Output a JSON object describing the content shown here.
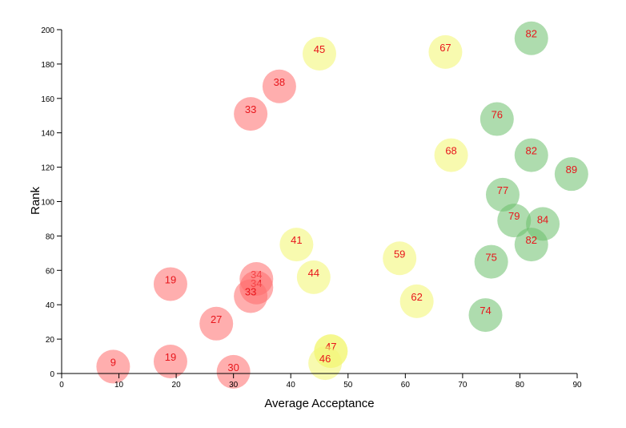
{
  "chart_data": {
    "type": "scatter",
    "title": "",
    "xlabel": "Average Acceptance",
    "ylabel": "Rank",
    "xlim": [
      0,
      90
    ],
    "ylim": [
      0,
      200
    ],
    "x_ticks": [
      0,
      10,
      20,
      30,
      40,
      50,
      60,
      70,
      80,
      90
    ],
    "y_ticks": [
      0,
      20,
      40,
      60,
      80,
      100,
      120,
      140,
      160,
      180,
      200
    ],
    "grid": false,
    "colors": {
      "red": "#ff6b6b",
      "yellow": "#f4f77a",
      "green": "#6cbf6c",
      "label": "#e8151b"
    },
    "points": [
      {
        "x": 82,
        "y": 195,
        "label": "82",
        "color": "green"
      },
      {
        "x": 45,
        "y": 186,
        "label": "45",
        "color": "yellow"
      },
      {
        "x": 67,
        "y": 187,
        "label": "67",
        "color": "yellow"
      },
      {
        "x": 38,
        "y": 167,
        "label": "38",
        "color": "red"
      },
      {
        "x": 33,
        "y": 151,
        "label": "33",
        "color": "red"
      },
      {
        "x": 76,
        "y": 148,
        "label": "76",
        "color": "green"
      },
      {
        "x": 68,
        "y": 127,
        "label": "68",
        "color": "yellow"
      },
      {
        "x": 82,
        "y": 127,
        "label": "82",
        "color": "green"
      },
      {
        "x": 89,
        "y": 116,
        "label": "89",
        "color": "green"
      },
      {
        "x": 77,
        "y": 104,
        "label": "77",
        "color": "green"
      },
      {
        "x": 79,
        "y": 89,
        "label": "79",
        "color": "green"
      },
      {
        "x": 84,
        "y": 87,
        "label": "84",
        "color": "green"
      },
      {
        "x": 82,
        "y": 75,
        "label": "82",
        "color": "green"
      },
      {
        "x": 41,
        "y": 75,
        "label": "41",
        "color": "yellow"
      },
      {
        "x": 59,
        "y": 67,
        "label": "59",
        "color": "yellow"
      },
      {
        "x": 75,
        "y": 65,
        "label": "75",
        "color": "green"
      },
      {
        "x": 34,
        "y": 55,
        "label": "34",
        "color": "red"
      },
      {
        "x": 44,
        "y": 56,
        "label": "44",
        "color": "yellow"
      },
      {
        "x": 19,
        "y": 52,
        "label": "19",
        "color": "red"
      },
      {
        "x": 34,
        "y": 50,
        "label": "34",
        "color": "red"
      },
      {
        "x": 33,
        "y": 45,
        "label": "33",
        "color": "red"
      },
      {
        "x": 62,
        "y": 42,
        "label": "62",
        "color": "yellow"
      },
      {
        "x": 74,
        "y": 34,
        "label": "74",
        "color": "green"
      },
      {
        "x": 27,
        "y": 29,
        "label": "27",
        "color": "red"
      },
      {
        "x": 47,
        "y": 13,
        "label": "47",
        "color": "yellow"
      },
      {
        "x": 47,
        "y": 13,
        "label": "47",
        "color": "yellow"
      },
      {
        "x": 19,
        "y": 7,
        "label": "19",
        "color": "red"
      },
      {
        "x": 46,
        "y": 6,
        "label": "46",
        "color": "yellow"
      },
      {
        "x": 9,
        "y": 4,
        "label": "9",
        "color": "red"
      },
      {
        "x": 30,
        "y": 1,
        "label": "30",
        "color": "red"
      }
    ]
  }
}
